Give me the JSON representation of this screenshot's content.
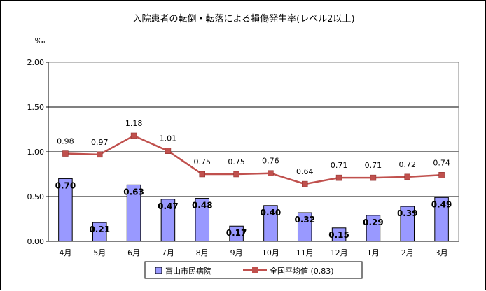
{
  "chart_data": {
    "type": "bar",
    "title": "入院患者の転倒・転落による損傷発生率(レベル2以上)",
    "unit_label": "‰",
    "categories": [
      "4月",
      "5月",
      "6月",
      "7月",
      "8月",
      "9月",
      "10月",
      "11月",
      "12月",
      "1月",
      "2月",
      "3月"
    ],
    "ylim": [
      0,
      2.0
    ],
    "yticks": [
      "0.00",
      "0.50",
      "1.00",
      "1.50",
      "2.00"
    ],
    "grid": true,
    "legend_position": "bottom",
    "series": [
      {
        "name": "富山市民病院",
        "type": "bar",
        "color": "#9999ff",
        "values": [
          0.7,
          0.21,
          0.63,
          0.47,
          0.48,
          0.17,
          0.4,
          0.32,
          0.15,
          0.29,
          0.39,
          0.49
        ],
        "labels": [
          "0.70",
          "0.21",
          "0.63",
          "0.47",
          "0.48",
          "0.17",
          "0.40",
          "0.32",
          "0.15",
          "0.29",
          "0.39",
          "0.49"
        ]
      },
      {
        "name": "全国平均値 (0.83)",
        "type": "line",
        "color": "#c0504d",
        "values": [
          0.98,
          0.97,
          1.18,
          1.01,
          0.75,
          0.75,
          0.76,
          0.64,
          0.71,
          0.71,
          0.72,
          0.74
        ],
        "labels": [
          "0.98",
          "0.97",
          "1.18",
          "1.01",
          "0.75",
          "0.75",
          "0.76",
          "0.64",
          "0.71",
          "0.71",
          "0.72",
          "0.74"
        ]
      }
    ]
  }
}
